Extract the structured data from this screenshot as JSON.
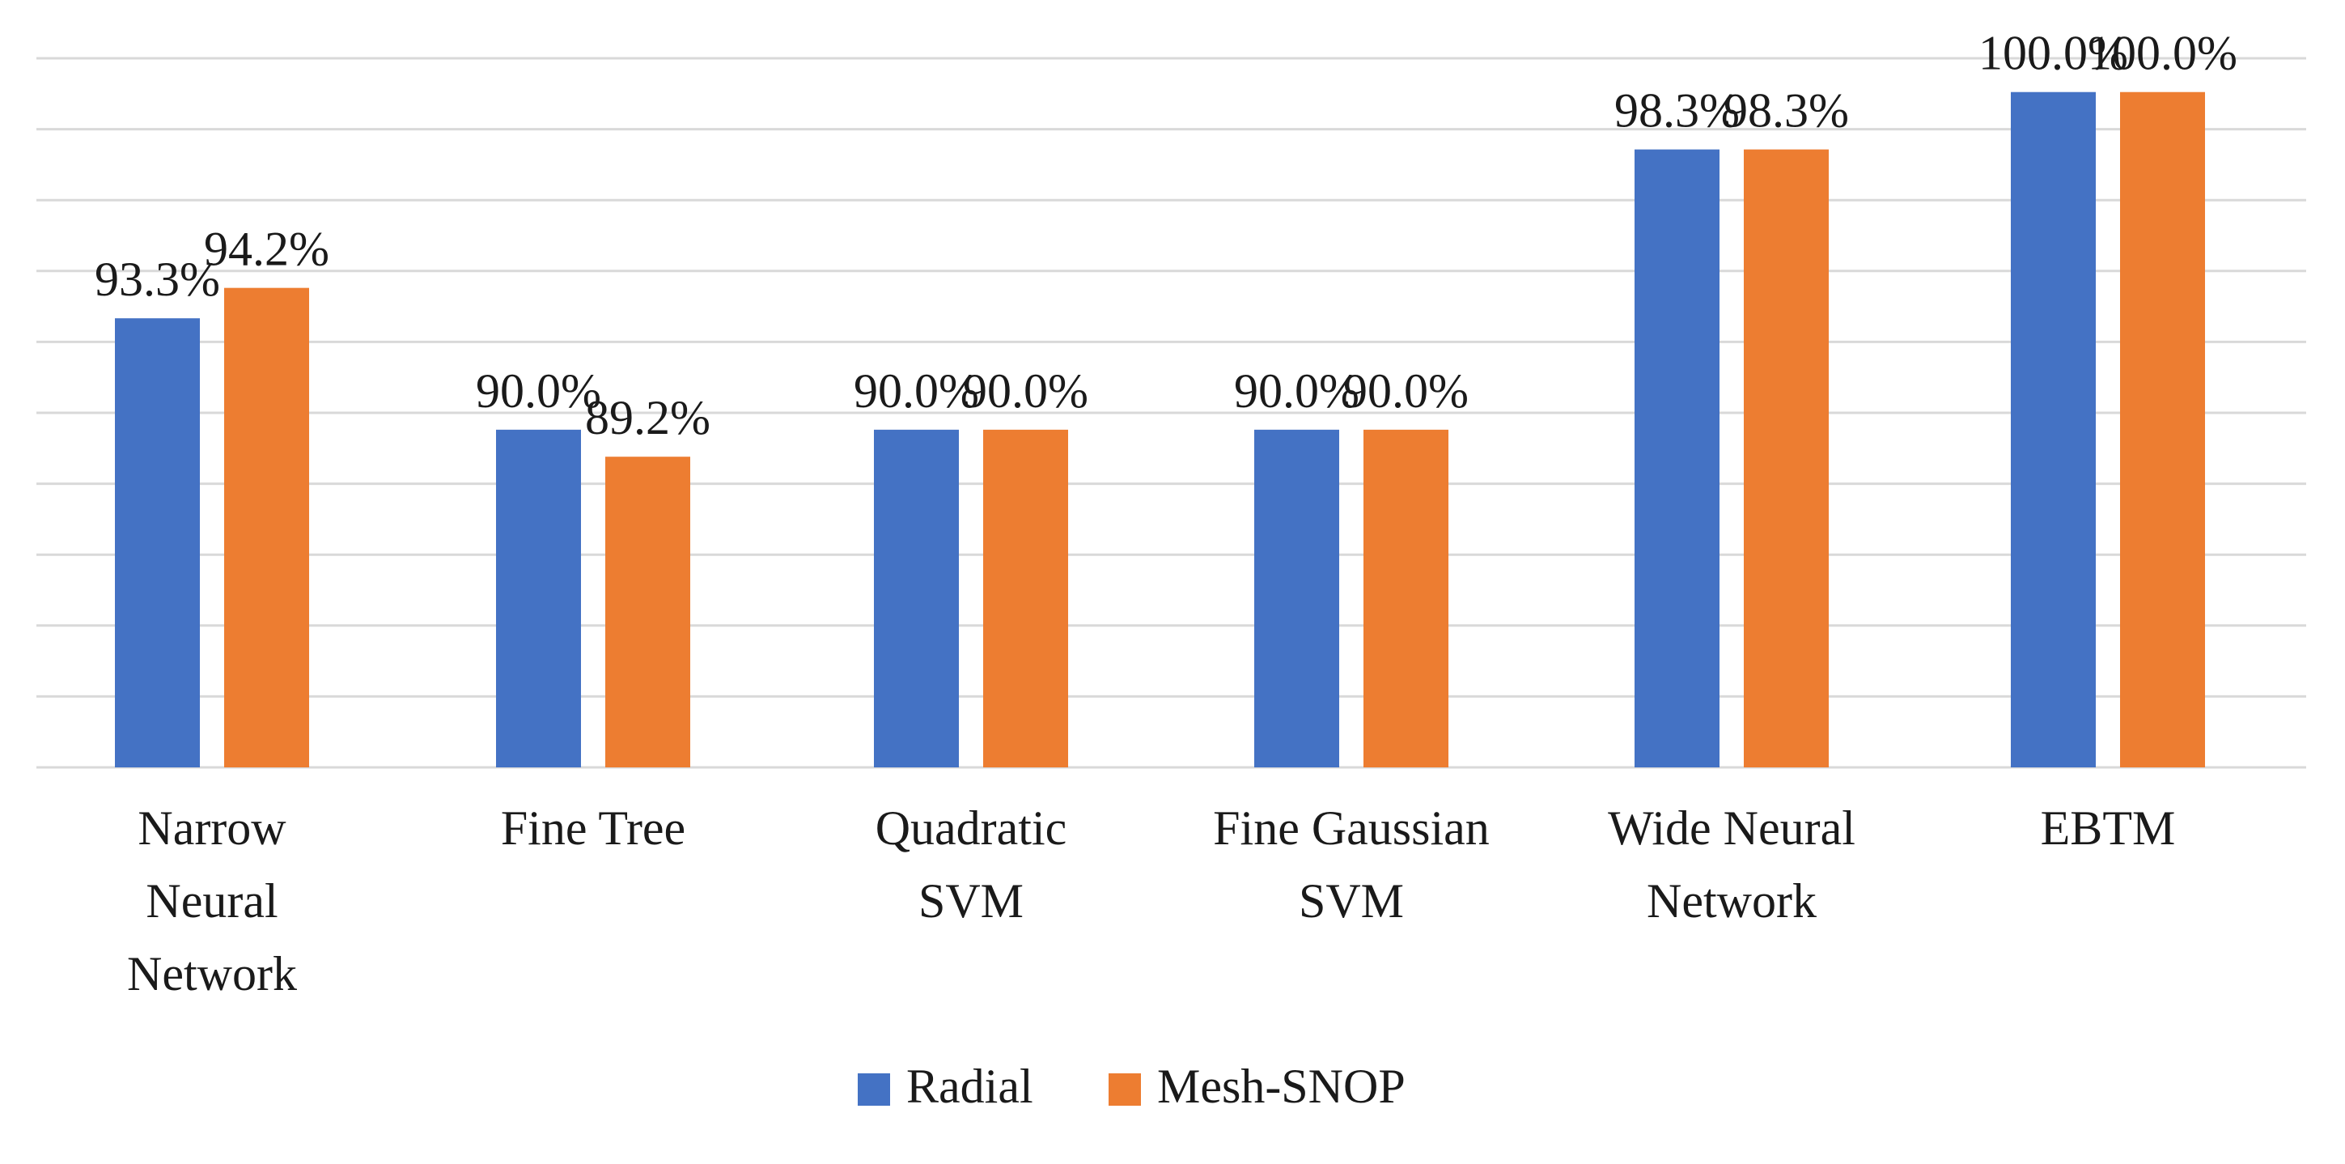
{
  "chart_data": {
    "type": "bar",
    "title": "",
    "xlabel": "",
    "ylabel": "",
    "ylim": [
      80,
      101
    ],
    "grid": true,
    "legend_position": "bottom-center",
    "categories": [
      [
        "Narrow",
        "Neural",
        "Network"
      ],
      [
        "Fine Tree"
      ],
      [
        "Quadratic",
        "SVM"
      ],
      [
        "Fine Gaussian",
        "SVM"
      ],
      [
        "Wide Neural",
        "Network"
      ],
      [
        "EBTM"
      ]
    ],
    "series": [
      {
        "name": "Radial",
        "color": "#4472C4",
        "values": [
          93.3,
          90.0,
          90.0,
          90.0,
          98.3,
          100.0
        ],
        "labels": [
          "93.3%",
          "90.0%",
          "90.0%",
          "90.0%",
          "98.3%",
          "100.0%"
        ]
      },
      {
        "name": "Mesh-SNOP",
        "color": "#ED7D31",
        "values": [
          94.2,
          89.2,
          90.0,
          90.0,
          98.3,
          100.0
        ],
        "labels": [
          "94.2%",
          "89.2%",
          "90.0%",
          "90.0%",
          "98.3%",
          "100.0%"
        ]
      }
    ]
  }
}
